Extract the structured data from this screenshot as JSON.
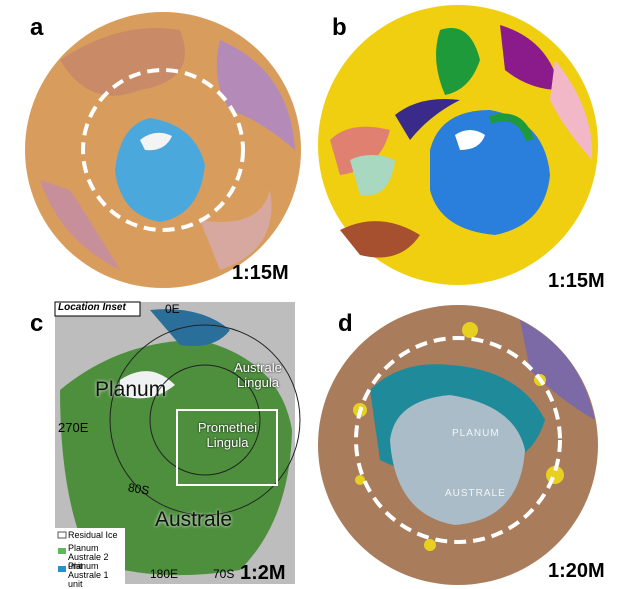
{
  "panels": [
    {
      "label": "a",
      "scale": "1:15M"
    },
    {
      "label": "b",
      "scale": "1:15M"
    },
    {
      "label": "c",
      "scale": "1:2M",
      "inset_title": "Location Inset",
      "map_labels": [
        "0E",
        "Planum",
        "Australe Lingula",
        "270E",
        "Promethei Lingula",
        "80S",
        "Australe",
        "180E",
        "70S"
      ],
      "legend": [
        "Residual Ice",
        "Planum Australe 2 unit",
        "Planum Australe 1 unit"
      ]
    },
    {
      "label": "d",
      "scale": "1:20M",
      "map_labels": [
        "PLANUM",
        "AUSTRALE"
      ]
    }
  ]
}
